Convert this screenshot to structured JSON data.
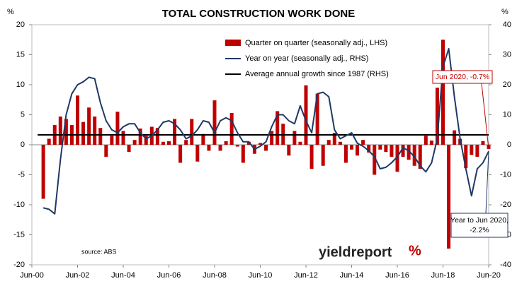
{
  "chart_data": {
    "type": "bar-line",
    "title": "TOTAL CONSTRUCTION WORK DONE",
    "y_unit": "%",
    "y2_unit": "%",
    "categories": [
      "Jun-00",
      null,
      null,
      null,
      null,
      null,
      null,
      null,
      "Jun-02",
      null,
      null,
      null,
      null,
      null,
      null,
      null,
      "Jun-04",
      null,
      null,
      null,
      null,
      null,
      null,
      null,
      "Jun-06",
      null,
      null,
      null,
      null,
      null,
      null,
      null,
      "Jun-08",
      null,
      null,
      null,
      null,
      null,
      null,
      null,
      "Jun-10",
      null,
      null,
      null,
      null,
      null,
      null,
      null,
      "Jun-12",
      null,
      null,
      null,
      null,
      null,
      null,
      null,
      "Jun-14",
      null,
      null,
      null,
      null,
      null,
      null,
      null,
      "Jun-16",
      null,
      null,
      null,
      null,
      null,
      null,
      null,
      "Jun-18",
      null,
      null,
      null,
      null,
      null,
      null,
      null,
      "Jun-20"
    ],
    "series": [
      {
        "name": "Quarter on quarter (seasonally adj., LHS)",
        "color": "#c00000",
        "axis": "y",
        "values": [
          null,
          null,
          -9,
          1,
          3.3,
          4.7,
          4.3,
          3.3,
          8.2,
          3.8,
          6.2,
          4.7,
          2.8,
          -2,
          1.5,
          5.5,
          2.3,
          -1.2,
          0.8,
          2.7,
          1.5,
          3,
          2.8,
          0.5,
          0.6,
          4.3,
          -3,
          0.8,
          4.3,
          -2.8,
          1.8,
          -1,
          7.4,
          -1,
          0.6,
          5.3,
          -0.3,
          -3,
          0.5,
          -1.5,
          0.3,
          -1,
          2.3,
          5.6,
          3.5,
          -1.8,
          2.3,
          0.5,
          9.9,
          -4,
          8.5,
          -3.5,
          0.8,
          2,
          0.5,
          -3,
          -0.8,
          -1.8,
          0.8,
          -1.3,
          -5,
          -0.8,
          -1.2,
          -2,
          -4.5,
          -2,
          -2.5,
          -3.5,
          -4,
          1.5,
          0.7,
          9.5,
          17.5,
          -17.3,
          2.4,
          1,
          -3.9,
          -1.7,
          -2,
          0.6,
          -0.7
        ]
      },
      {
        "name": "Year on year (seasonally adj., RHS)",
        "color": "#1f3864",
        "axis": "y2",
        "values": [
          null,
          null,
          -21,
          -21.5,
          -23,
          -5,
          10,
          17,
          20,
          21,
          22.5,
          22,
          14,
          8,
          5,
          4,
          6,
          7,
          7,
          4,
          2,
          3,
          5,
          7.5,
          8,
          7,
          5,
          2,
          3,
          5,
          8,
          7.5,
          4,
          8,
          9,
          8,
          4,
          1,
          1,
          -1.5,
          -0.5,
          1,
          6,
          10,
          10,
          8,
          7,
          13,
          8,
          4,
          17,
          17.5,
          16,
          5,
          2,
          3,
          4,
          0.5,
          -0.5,
          -2,
          -4,
          -8,
          -7.5,
          -6,
          -4,
          -1,
          -2,
          -4,
          -7,
          -9,
          -6,
          2,
          26,
          32,
          16,
          2,
          -8,
          -17,
          -8,
          -6,
          -2.2
        ]
      }
    ],
    "average_line": {
      "name": "Average annual growth since 1987 (RHS)",
      "color": "#000000",
      "axis": "y2",
      "value": 3.3
    },
    "ylim": [
      -20,
      20
    ],
    "yticks": [
      -20,
      -15,
      -10,
      -5,
      0,
      5,
      10,
      15,
      20
    ],
    "y2lim": [
      -40,
      40
    ],
    "y2ticks": [
      -40,
      -30,
      -20,
      -10,
      0,
      10,
      20,
      30,
      40
    ],
    "annotations": {
      "qoq": "Jun 2020, -0.7%",
      "yoy": [
        "Year to Jun 2020,",
        "-2.2%"
      ]
    },
    "source": "source: ABS",
    "logo": [
      "yieldreport",
      "%"
    ],
    "grid": false
  }
}
